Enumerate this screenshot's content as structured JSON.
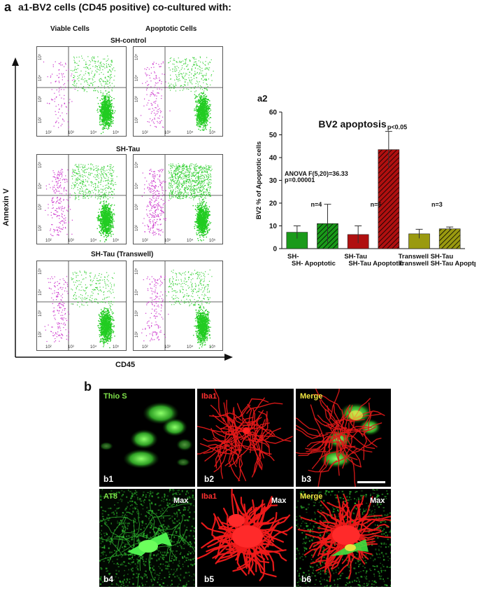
{
  "panel_a": {
    "letter": "a",
    "title": "a1-BV2 cells (CD45 positive) co-cultured with:",
    "col_viable": "Viable Cells",
    "col_apoptotic": "Apoptotic Cells",
    "row_titles": [
      "SH-control",
      "SH-Tau",
      "SH-Tau (Transwell)"
    ],
    "y_axis": "Annexin V",
    "x_axis": "CD45",
    "x_ticks": [
      "10²",
      "10³",
      "10⁴",
      "10⁵"
    ],
    "y_ticks": [
      "10⁵",
      "10⁴",
      "10³",
      "10²"
    ],
    "colors": {
      "cd45_positive": "#22cc22",
      "cd45_negative": "#cc33cc"
    }
  },
  "panel_a2": {
    "label": "a2",
    "chart_data": {
      "type": "bar",
      "title": "BV2 apoptosis",
      "ylabel": "BV2 % of Apoptotic  cells",
      "ylim": [
        0,
        60
      ],
      "yticks": [
        "0",
        "10",
        "20",
        "30",
        "40",
        "50",
        "60"
      ],
      "categories": [
        "SH-",
        "SH- Apoptotic",
        "SH-Tau",
        "SH-Tau Apoptotic",
        "Transwell SH-Tau",
        "Transwell SH-Tau Apoptptic"
      ],
      "values": [
        7.2,
        11,
        6.2,
        43.5,
        6.5,
        8.7
      ],
      "errors": [
        2.8,
        8.5,
        3.8,
        8,
        2,
        0.8
      ],
      "colors": [
        "#1a9a1a",
        "#1a9a1a",
        "#b01010",
        "#b01010",
        "#9a9a10",
        "#9a9a10"
      ],
      "hatched": [
        false,
        true,
        false,
        true,
        false,
        true
      ],
      "annotations": {
        "anova": "ANOVA F(5,20)=36.33",
        "p_overall": "p=0.00001",
        "n1": "n=4",
        "n2": "n=6",
        "n3": "n=3",
        "sig": "p<0.05"
      }
    }
  },
  "panel_b": {
    "letter": "b",
    "labels": {
      "thio": "Thio S",
      "iba1": "Iba1",
      "merge": "Merge",
      "at8": "AT8",
      "max": "Max"
    },
    "panels": [
      "b1",
      "b2",
      "b3",
      "b4",
      "b5",
      "b6"
    ]
  }
}
